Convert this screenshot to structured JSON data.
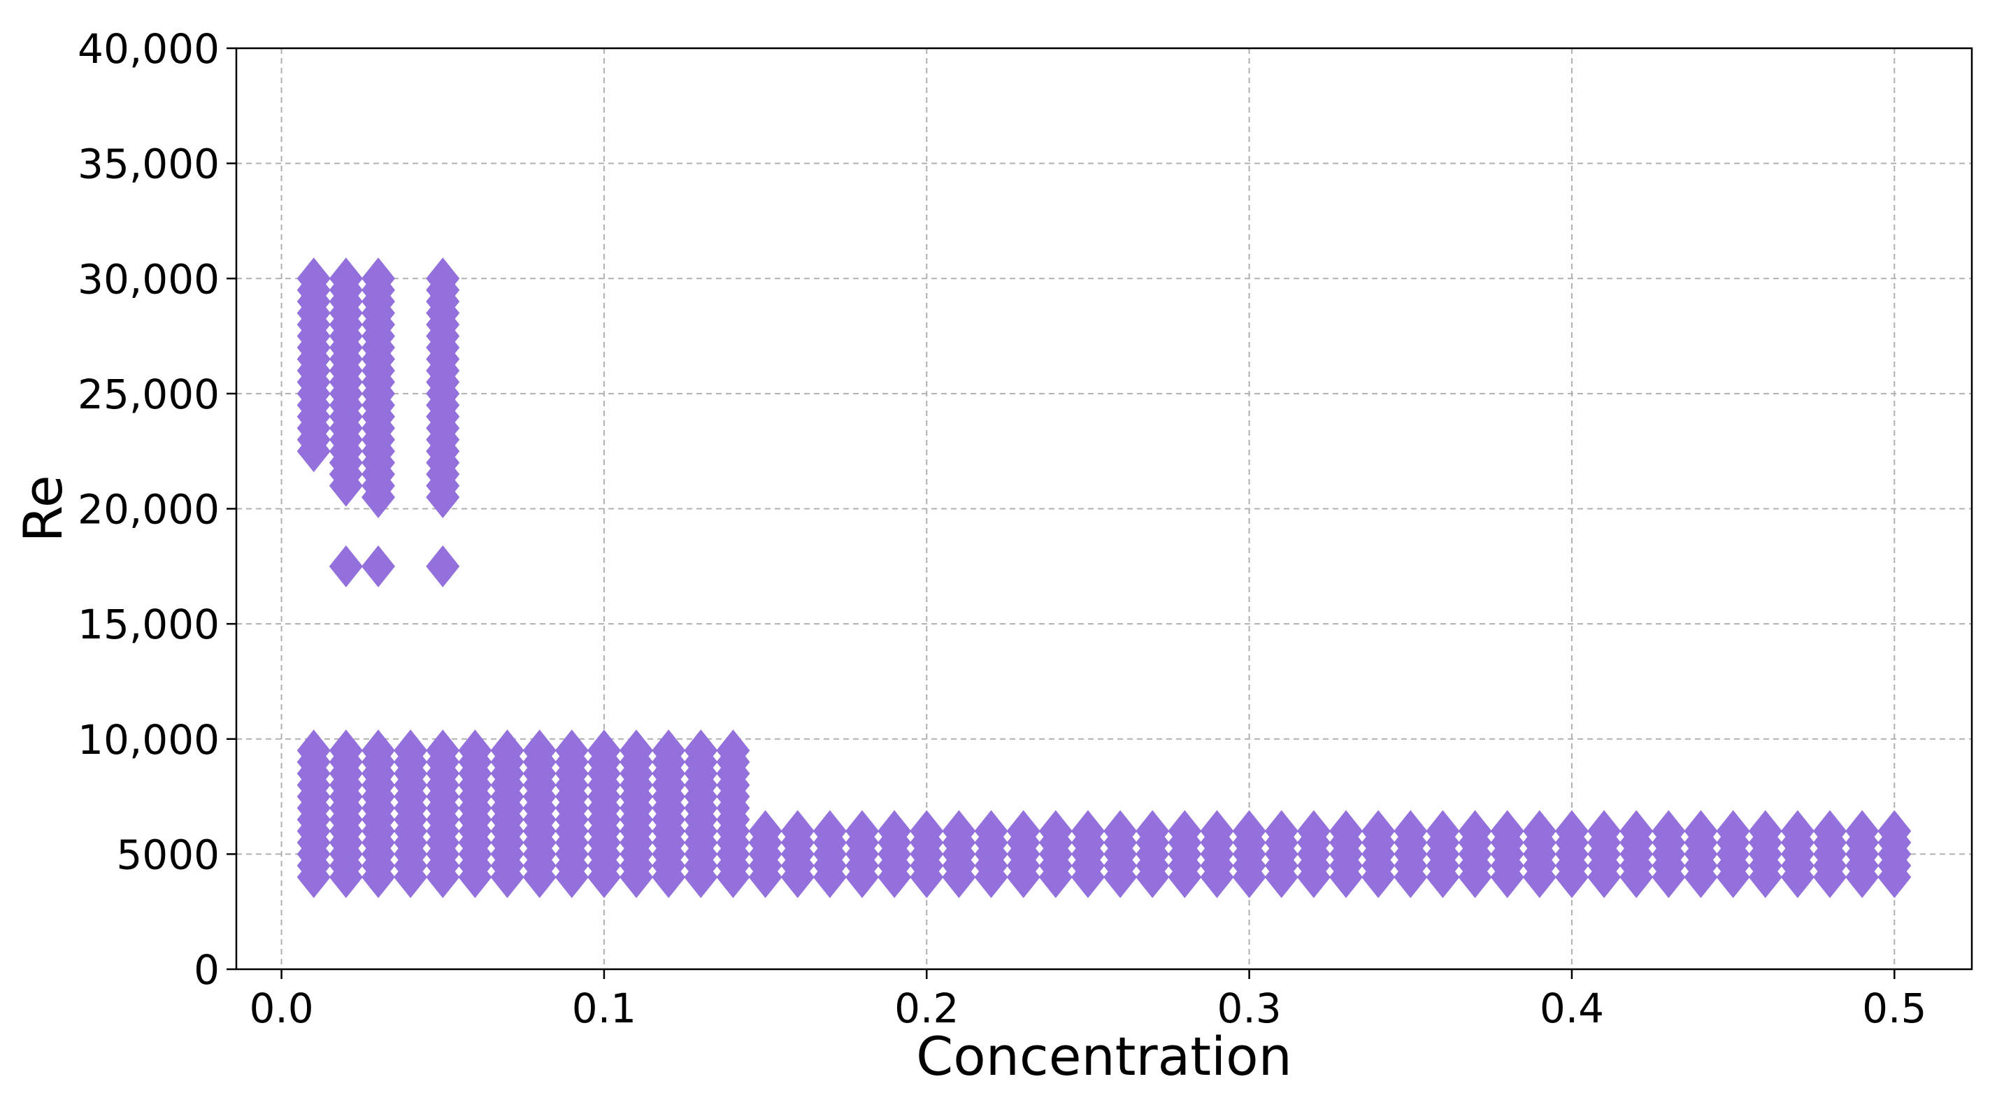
{
  "chart_data": {
    "type": "scatter",
    "xlabel": "Concentration",
    "ylabel": "Re",
    "xlim": [
      -0.014,
      0.524
    ],
    "ylim": [
      0,
      40000
    ],
    "xticks": [
      {
        "value": 0.0,
        "label": "0.0"
      },
      {
        "value": 0.1,
        "label": "0.1"
      },
      {
        "value": 0.2,
        "label": "0.2"
      },
      {
        "value": 0.3,
        "label": "0.3"
      },
      {
        "value": 0.4,
        "label": "0.4"
      },
      {
        "value": 0.5,
        "label": "0.5"
      }
    ],
    "yticks": [
      {
        "value": 0,
        "label": "0"
      },
      {
        "value": 5000,
        "label": "5000"
      },
      {
        "value": 10000,
        "label": "10,000"
      },
      {
        "value": 15000,
        "label": "15,000"
      },
      {
        "value": 20000,
        "label": "20,000"
      },
      {
        "value": 25000,
        "label": "25,000"
      },
      {
        "value": 30000,
        "label": "30,000"
      },
      {
        "value": 35000,
        "label": "35,000"
      },
      {
        "value": 40000,
        "label": "40,000"
      }
    ],
    "grid": true,
    "marker": "diamond",
    "color": "#9370DB",
    "series": [
      {
        "columns": [
          {
            "x": 0.01,
            "y": [
              4000,
              4500,
              5000,
              5500,
              6000,
              6500,
              7000,
              7500,
              8000,
              8500,
              9000,
              9500,
              22500,
              23000,
              23500,
              24000,
              24500,
              25000,
              25500,
              26000,
              26500,
              27000,
              27500,
              28000,
              28500,
              29000,
              29500,
              30000
            ]
          },
          {
            "x": 0.02,
            "y": [
              4000,
              4500,
              5000,
              5500,
              6000,
              6500,
              7000,
              7500,
              8000,
              8500,
              9000,
              9500,
              17500,
              21000,
              21500,
              22000,
              22500,
              23000,
              23500,
              24000,
              24500,
              25000,
              25500,
              26000,
              26500,
              27000,
              27500,
              28000,
              28500,
              29000,
              29500,
              30000
            ]
          },
          {
            "x": 0.03,
            "y": [
              4000,
              4500,
              5000,
              5500,
              6000,
              6500,
              7000,
              7500,
              8000,
              8500,
              9000,
              9500,
              17500,
              20500,
              21000,
              21500,
              22000,
              22500,
              23000,
              23500,
              24000,
              24500,
              25000,
              25500,
              26000,
              26500,
              27000,
              27500,
              28000,
              28500,
              29000,
              29500,
              30000
            ]
          },
          {
            "x": 0.04,
            "y": [
              4000,
              4500,
              5000,
              5500,
              6000,
              6500,
              7000,
              7500,
              8000,
              8500,
              9000,
              9500
            ]
          },
          {
            "x": 0.05,
            "y": [
              4000,
              4500,
              5000,
              5500,
              6000,
              6500,
              7000,
              7500,
              8000,
              8500,
              9000,
              9500,
              17500,
              20500,
              21000,
              21500,
              22000,
              22500,
              23000,
              23500,
              24000,
              24500,
              25000,
              25500,
              26000,
              26500,
              27000,
              27500,
              28000,
              28500,
              29000,
              29500,
              30000
            ]
          },
          {
            "x": 0.06,
            "y": [
              4000,
              4500,
              5000,
              5500,
              6000,
              6500,
              7000,
              7500,
              8000,
              8500,
              9000,
              9500
            ]
          },
          {
            "x": 0.07,
            "y": [
              4000,
              4500,
              5000,
              5500,
              6000,
              6500,
              7000,
              7500,
              8000,
              8500,
              9000,
              9500
            ]
          },
          {
            "x": 0.08,
            "y": [
              4000,
              4500,
              5000,
              5500,
              6000,
              6500,
              7000,
              7500,
              8000,
              8500,
              9000,
              9500
            ]
          },
          {
            "x": 0.09,
            "y": [
              4000,
              4500,
              5000,
              5500,
              6000,
              6500,
              7000,
              7500,
              8000,
              8500,
              9000,
              9500
            ]
          },
          {
            "x": 0.1,
            "y": [
              4000,
              4500,
              5000,
              5500,
              6000,
              6500,
              7000,
              7500,
              8000,
              8500,
              9000,
              9500
            ]
          },
          {
            "x": 0.11,
            "y": [
              4000,
              4500,
              5000,
              5500,
              6000,
              6500,
              7000,
              7500,
              8000,
              8500,
              9000,
              9500
            ]
          },
          {
            "x": 0.12,
            "y": [
              4000,
              4500,
              5000,
              5500,
              6000,
              6500,
              7000,
              7500,
              8000,
              8500,
              9000,
              9500
            ]
          },
          {
            "x": 0.13,
            "y": [
              4000,
              4500,
              5000,
              5500,
              6000,
              6500,
              7000,
              7500,
              8000,
              8500,
              9000,
              9500
            ]
          },
          {
            "x": 0.14,
            "y": [
              4000,
              4500,
              5000,
              5500,
              6000,
              6500,
              7000,
              7500,
              8000,
              8500,
              9000,
              9500
            ]
          },
          {
            "x": 0.15,
            "y": [
              4000,
              4500,
              5000,
              5500,
              6000
            ]
          },
          {
            "x": 0.16,
            "y": [
              4000,
              4500,
              5000,
              5500,
              6000
            ]
          },
          {
            "x": 0.17,
            "y": [
              4000,
              4500,
              5000,
              5500,
              6000
            ]
          },
          {
            "x": 0.18,
            "y": [
              4000,
              4500,
              5000,
              5500,
              6000
            ]
          },
          {
            "x": 0.19,
            "y": [
              4000,
              4500,
              5000,
              5500,
              6000
            ]
          },
          {
            "x": 0.2,
            "y": [
              4000,
              4500,
              5000,
              5500,
              6000
            ]
          },
          {
            "x": 0.21,
            "y": [
              4000,
              4500,
              5000,
              5500,
              6000
            ]
          },
          {
            "x": 0.22,
            "y": [
              4000,
              4500,
              5000,
              5500,
              6000
            ]
          },
          {
            "x": 0.23,
            "y": [
              4000,
              4500,
              5000,
              5500,
              6000
            ]
          },
          {
            "x": 0.24,
            "y": [
              4000,
              4500,
              5000,
              5500,
              6000
            ]
          },
          {
            "x": 0.25,
            "y": [
              4000,
              4500,
              5000,
              5500,
              6000
            ]
          },
          {
            "x": 0.26,
            "y": [
              4000,
              4500,
              5000,
              5500,
              6000
            ]
          },
          {
            "x": 0.27,
            "y": [
              4000,
              4500,
              5000,
              5500,
              6000
            ]
          },
          {
            "x": 0.28,
            "y": [
              4000,
              4500,
              5000,
              5500,
              6000
            ]
          },
          {
            "x": 0.29,
            "y": [
              4000,
              4500,
              5000,
              5500,
              6000
            ]
          },
          {
            "x": 0.3,
            "y": [
              4000,
              4500,
              5000,
              5500,
              6000
            ]
          },
          {
            "x": 0.31,
            "y": [
              4000,
              4500,
              5000,
              5500,
              6000
            ]
          },
          {
            "x": 0.32,
            "y": [
              4000,
              4500,
              5000,
              5500,
              6000
            ]
          },
          {
            "x": 0.33,
            "y": [
              4000,
              4500,
              5000,
              5500,
              6000
            ]
          },
          {
            "x": 0.34,
            "y": [
              4000,
              4500,
              5000,
              5500,
              6000
            ]
          },
          {
            "x": 0.35,
            "y": [
              4000,
              4500,
              5000,
              5500,
              6000
            ]
          },
          {
            "x": 0.36,
            "y": [
              4000,
              4500,
              5000,
              5500,
              6000
            ]
          },
          {
            "x": 0.37,
            "y": [
              4000,
              4500,
              5000,
              5500,
              6000
            ]
          },
          {
            "x": 0.38,
            "y": [
              4000,
              4500,
              5000,
              5500,
              6000
            ]
          },
          {
            "x": 0.39,
            "y": [
              4000,
              4500,
              5000,
              5500,
              6000
            ]
          },
          {
            "x": 0.4,
            "y": [
              4000,
              4500,
              5000,
              5500,
              6000
            ]
          },
          {
            "x": 0.41,
            "y": [
              4000,
              4500,
              5000,
              5500,
              6000
            ]
          },
          {
            "x": 0.42,
            "y": [
              4000,
              4500,
              5000,
              5500,
              6000
            ]
          },
          {
            "x": 0.43,
            "y": [
              4000,
              4500,
              5000,
              5500,
              6000
            ]
          },
          {
            "x": 0.44,
            "y": [
              4000,
              4500,
              5000,
              5500,
              6000
            ]
          },
          {
            "x": 0.45,
            "y": [
              4000,
              4500,
              5000,
              5500,
              6000
            ]
          },
          {
            "x": 0.46,
            "y": [
              4000,
              4500,
              5000,
              5500,
              6000
            ]
          },
          {
            "x": 0.47,
            "y": [
              4000,
              4500,
              5000,
              5500,
              6000
            ]
          },
          {
            "x": 0.48,
            "y": [
              4000,
              4500,
              5000,
              5500,
              6000
            ]
          },
          {
            "x": 0.49,
            "y": [
              4000,
              4500,
              5000,
              5500,
              6000
            ]
          },
          {
            "x": 0.5,
            "y": [
              4000,
              4500,
              5000,
              5500,
              6000
            ]
          }
        ]
      }
    ]
  }
}
